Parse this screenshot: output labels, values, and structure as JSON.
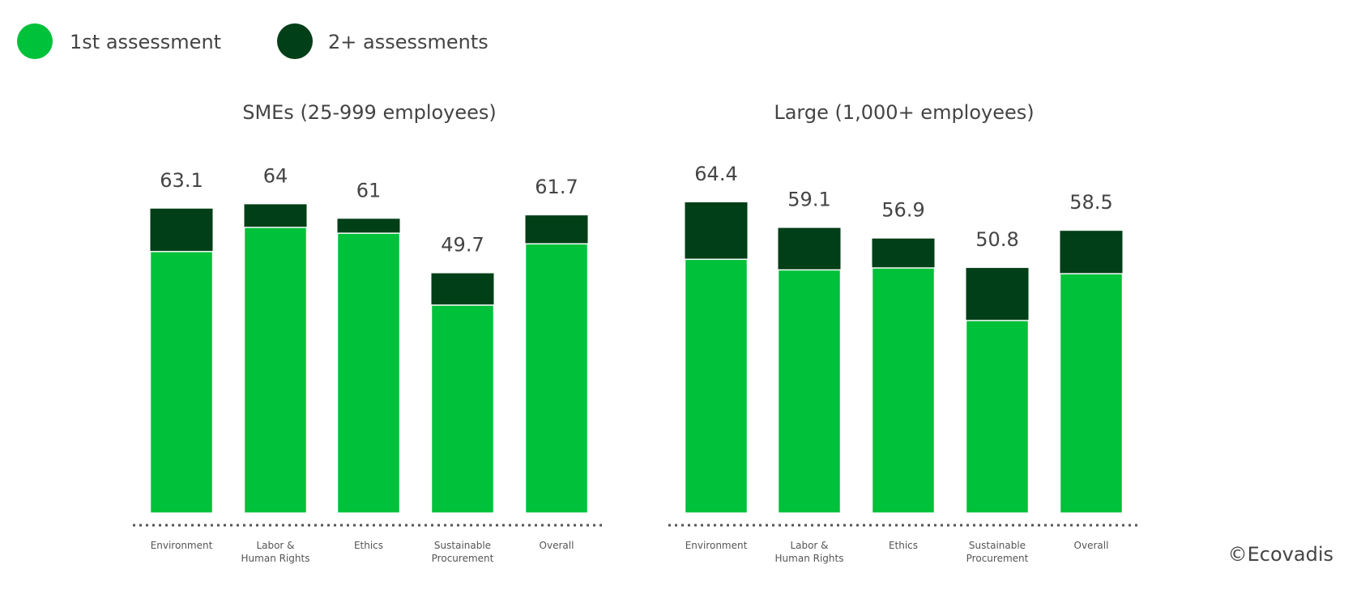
{
  "chart_data": [
    {
      "type": "bar",
      "barmode": "overlay",
      "title": "SMEs (25-999 employees)",
      "categories": [
        "Environment",
        "Labor &\nHuman Rights",
        "Ethics",
        "Sustainable\nProcurement",
        "Overall"
      ],
      "series": [
        {
          "name": "1st assessment",
          "color": "#00c13a",
          "values": [
            54.2,
            59.2,
            58.0,
            43.1,
            55.8
          ]
        },
        {
          "name": "2+ assessments",
          "color": "#003f17",
          "values": [
            63.1,
            64,
            61,
            49.7,
            61.7
          ]
        }
      ],
      "ylim": [
        0,
        80
      ]
    },
    {
      "type": "bar",
      "barmode": "overlay",
      "title": "Large (1,000+ employees)",
      "categories": [
        "Environment",
        "Labor &\nHuman Rights",
        "Ethics",
        "Sustainable\nProcurement",
        "Overall"
      ],
      "series": [
        {
          "name": "1st assessment",
          "color": "#00c13a",
          "values": [
            52.6,
            50.4,
            50.8,
            39.9,
            49.6
          ]
        },
        {
          "name": "2+ assessments",
          "color": "#003f17",
          "values": [
            64.4,
            59.1,
            56.9,
            50.8,
            58.5
          ]
        }
      ],
      "ylim": [
        0,
        80
      ]
    }
  ],
  "credit": "©Ecovadis"
}
